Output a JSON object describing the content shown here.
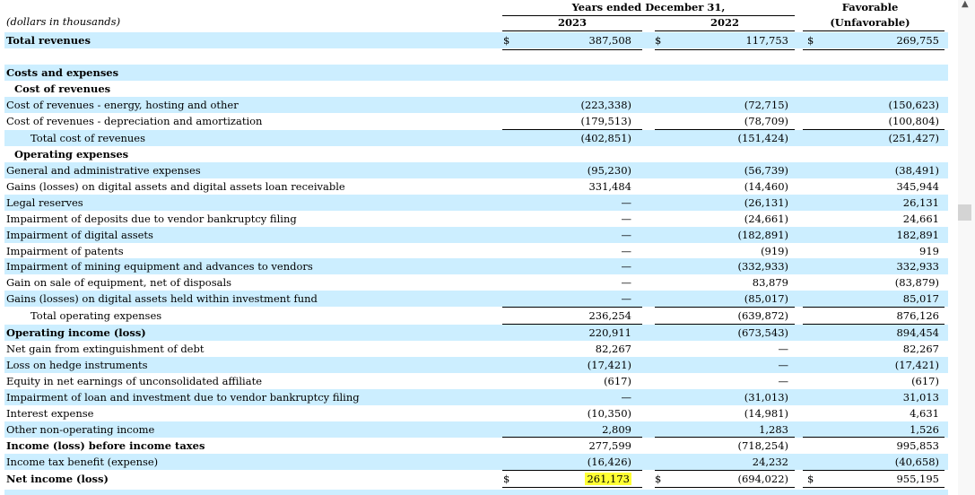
{
  "header": {
    "period_title": "Years ended December 31,",
    "col_2023": "2023",
    "col_2022": "2022",
    "col_change_line1": "Favorable",
    "col_change_line2": "(Unfavorable)",
    "units_note": "(dollars in thousands)"
  },
  "currency_symbol": "$",
  "rows": [
    {
      "label": "Total revenues",
      "v2023": "387,508",
      "v2022": "117,753",
      "vchg": "269,755"
    },
    {
      "label": "Costs and expenses"
    },
    {
      "label": "Cost of revenues"
    },
    {
      "label": "Cost of revenues - energy, hosting and other",
      "v2023": "(223,338)",
      "v2022": "(72,715)",
      "vchg": "(150,623)"
    },
    {
      "label": "Cost of revenues - depreciation and amortization",
      "v2023": "(179,513)",
      "v2022": "(78,709)",
      "vchg": "(100,804)"
    },
    {
      "label": "Total cost of revenues",
      "v2023": "(402,851)",
      "v2022": "(151,424)",
      "vchg": "(251,427)"
    },
    {
      "label": "Operating expenses"
    },
    {
      "label": "General and administrative expenses",
      "v2023": "(95,230)",
      "v2022": "(56,739)",
      "vchg": "(38,491)"
    },
    {
      "label": "Gains (losses) on digital assets and digital assets loan receivable",
      "v2023": "331,484",
      "v2022": "(14,460)",
      "vchg": "345,944"
    },
    {
      "label": "Legal reserves",
      "v2023": "—",
      "v2022": "(26,131)",
      "vchg": "26,131"
    },
    {
      "label": "Impairment of deposits due to vendor bankruptcy filing",
      "v2023": "—",
      "v2022": "(24,661)",
      "vchg": "24,661"
    },
    {
      "label": "Impairment of digital assets",
      "v2023": "—",
      "v2022": "(182,891)",
      "vchg": "182,891"
    },
    {
      "label": "Impairment of patents",
      "v2023": "—",
      "v2022": "(919)",
      "vchg": "919"
    },
    {
      "label": "Impairment of mining equipment and advances to vendors",
      "v2023": "—",
      "v2022": "(332,933)",
      "vchg": "332,933"
    },
    {
      "label": "Gain on sale of equipment, net of disposals",
      "v2023": "—",
      "v2022": "83,879",
      "vchg": "(83,879)"
    },
    {
      "label": "Gains (losses) on digital assets held within investment fund",
      "v2023": "—",
      "v2022": "(85,017)",
      "vchg": "85,017"
    },
    {
      "label": "Total operating expenses",
      "v2023": "236,254",
      "v2022": "(639,872)",
      "vchg": "876,126"
    },
    {
      "label": "Operating income (loss)",
      "v2023": "220,911",
      "v2022": "(673,543)",
      "vchg": "894,454"
    },
    {
      "label": "Net gain from extinguishment of debt",
      "v2023": "82,267",
      "v2022": "—",
      "vchg": "82,267"
    },
    {
      "label": "Loss on hedge instruments",
      "v2023": "(17,421)",
      "v2022": "—",
      "vchg": "(17,421)"
    },
    {
      "label": "Equity in net earnings of unconsolidated affiliate",
      "v2023": "(617)",
      "v2022": "—",
      "vchg": "(617)"
    },
    {
      "label": "Impairment of loan and investment due to vendor bankruptcy filing",
      "v2023": "—",
      "v2022": "(31,013)",
      "vchg": "31,013"
    },
    {
      "label": "Interest expense",
      "v2023": "(10,350)",
      "v2022": "(14,981)",
      "vchg": "4,631"
    },
    {
      "label": "Other non-operating income",
      "v2023": "2,809",
      "v2022": "1,283",
      "vchg": "1,526"
    },
    {
      "label": "Income (loss) before income taxes",
      "v2023": "277,599",
      "v2022": "(718,254)",
      "vchg": "995,853"
    },
    {
      "label": "Income tax benefit (expense)",
      "v2023": "(16,426)",
      "v2022": "24,232",
      "vchg": "(40,658)"
    },
    {
      "label": "Net income (loss)",
      "v2023": "261,173",
      "v2022": "(694,022)",
      "vchg": "955,195"
    }
  ]
}
